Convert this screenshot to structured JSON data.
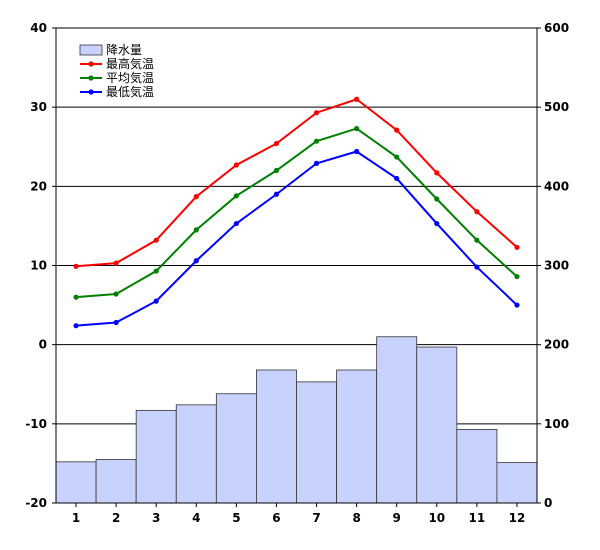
{
  "chart_data": {
    "type": "bar+line",
    "categories": [
      "1",
      "2",
      "3",
      "4",
      "5",
      "6",
      "7",
      "8",
      "9",
      "10",
      "11",
      "12"
    ],
    "bars": {
      "name": "降水量",
      "axis": "right",
      "color": "#c8d2ff",
      "values": [
        52,
        55,
        117,
        124,
        138,
        168,
        153,
        168,
        210,
        197,
        93,
        51
      ]
    },
    "lines": [
      {
        "name": "最高気温",
        "axis": "left",
        "color": "#ff0000",
        "values": [
          9.9,
          10.3,
          13.2,
          18.7,
          22.7,
          25.4,
          29.3,
          31.0,
          27.1,
          21.7,
          16.8,
          12.3
        ]
      },
      {
        "name": "平均気温",
        "axis": "left",
        "color": "#008000",
        "values": [
          6.0,
          6.4,
          9.3,
          14.5,
          18.8,
          22.0,
          25.7,
          27.3,
          23.7,
          18.4,
          13.2,
          8.6
        ]
      },
      {
        "name": "最低気温",
        "axis": "left",
        "color": "#0000ff",
        "values": [
          2.4,
          2.8,
          5.5,
          10.6,
          15.3,
          19.0,
          22.9,
          24.4,
          21.0,
          15.3,
          9.8,
          5.0
        ]
      }
    ],
    "left_axis": {
      "min": -20,
      "max": 40,
      "ticks": [
        "40",
        "30",
        "20",
        "10",
        "0",
        "-10",
        "-20"
      ]
    },
    "right_axis": {
      "min": 0,
      "max": 600,
      "ticks": [
        "600",
        "500",
        "400",
        "300",
        "200",
        "100",
        "0"
      ]
    },
    "grid": true,
    "legend_position": "top-left"
  }
}
